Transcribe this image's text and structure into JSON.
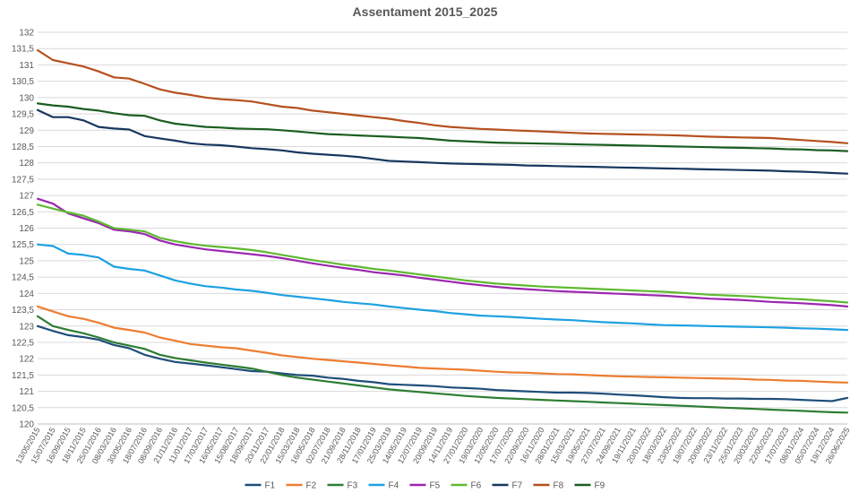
{
  "chart_data": {
    "type": "line",
    "title": "Assentament 2015_2025",
    "xlabel": "",
    "ylabel": "",
    "ylim": [
      120,
      132
    ],
    "ytick_step": 0.5,
    "ytick_labels": [
      "120",
      "120,5",
      "121",
      "121,5",
      "122",
      "122,5",
      "123",
      "123,5",
      "124",
      "124,5",
      "125",
      "125,5",
      "126",
      "126,5",
      "127",
      "127,5",
      "128",
      "128,5",
      "129",
      "129,5",
      "130",
      "130,5",
      "131",
      "131,5",
      "132"
    ],
    "grid": true,
    "legend_position": "bottom",
    "categories": [
      "13/05/2015",
      "15/07/2015",
      "16/09/2015",
      "18/11/2015",
      "25/01/2016",
      "08/03/2016",
      "30/05/2016",
      "18/07/2016",
      "08/09/2016",
      "21/11/2016",
      "11/01/2017",
      "17/03/2017",
      "16/05/2017",
      "15/08/2017",
      "18/09/2017",
      "20/11/2017",
      "22/01/2018",
      "15/03/2018",
      "16/05/2018",
      "02/07/2018",
      "21/09/2018",
      "28/11/2018",
      "17/01/2019",
      "25/03/2019",
      "14/05/2019",
      "12/07/2019",
      "20/09/2019",
      "14/11/2019",
      "27/01/2020",
      "19/03/2020",
      "12/05/2020",
      "17/07/2020",
      "22/09/2020",
      "16/11/2020",
      "28/01/2021",
      "15/03/2021",
      "19/05/2021",
      "27/07/2021",
      "24/09/2021",
      "19/11/2021",
      "20/01/2022",
      "18/03/2022",
      "23/05/2022",
      "19/07/2022",
      "20/09/2022",
      "23/11/2022",
      "25/01/2023",
      "20/03/2023",
      "22/05/2023",
      "17/07/2023",
      "08/01/2024",
      "05/07/2024",
      "19/12/2024",
      "26/06/2025"
    ],
    "series": [
      {
        "name": "F1",
        "color": "#1f4e79",
        "values": [
          123.0,
          122.85,
          122.72,
          122.66,
          122.58,
          122.42,
          122.32,
          122.12,
          122.0,
          121.9,
          121.85,
          121.8,
          121.74,
          121.68,
          121.62,
          121.6,
          121.55,
          121.5,
          121.48,
          121.42,
          121.38,
          121.32,
          121.28,
          121.22,
          121.2,
          121.18,
          121.16,
          121.12,
          121.1,
          121.08,
          121.04,
          121.02,
          121.0,
          120.98,
          120.96,
          120.96,
          120.95,
          120.93,
          120.9,
          120.88,
          120.85,
          120.82,
          120.8,
          120.79,
          120.79,
          120.78,
          120.78,
          120.77,
          120.77,
          120.76,
          120.74,
          120.72,
          120.7,
          120.8
        ]
      },
      {
        "name": "F2",
        "color": "#ed7d31",
        "values": [
          123.6,
          123.45,
          123.3,
          123.22,
          123.1,
          122.95,
          122.88,
          122.8,
          122.65,
          122.55,
          122.45,
          122.4,
          122.35,
          122.32,
          122.25,
          122.18,
          122.1,
          122.05,
          122.0,
          121.96,
          121.92,
          121.88,
          121.84,
          121.8,
          121.76,
          121.72,
          121.7,
          121.68,
          121.66,
          121.63,
          121.6,
          121.58,
          121.57,
          121.55,
          121.53,
          121.52,
          121.5,
          121.48,
          121.46,
          121.45,
          121.44,
          121.43,
          121.42,
          121.41,
          121.4,
          121.39,
          121.38,
          121.36,
          121.35,
          121.33,
          121.32,
          121.3,
          121.28,
          121.27
        ]
      },
      {
        "name": "F3",
        "color": "#2e7d32",
        "values": [
          123.3,
          123.0,
          122.88,
          122.78,
          122.65,
          122.5,
          122.4,
          122.3,
          122.12,
          122.02,
          121.95,
          121.88,
          121.82,
          121.76,
          121.7,
          121.6,
          121.5,
          121.42,
          121.36,
          121.3,
          121.24,
          121.18,
          121.12,
          121.06,
          121.02,
          120.98,
          120.94,
          120.9,
          120.86,
          120.83,
          120.8,
          120.78,
          120.76,
          120.74,
          120.72,
          120.7,
          120.68,
          120.66,
          120.64,
          120.62,
          120.6,
          120.58,
          120.56,
          120.54,
          120.52,
          120.5,
          120.48,
          120.46,
          120.44,
          120.42,
          120.4,
          120.38,
          120.36,
          120.35
        ]
      },
      {
        "name": "F4",
        "color": "#1da1e2",
        "values": [
          125.5,
          125.45,
          125.22,
          125.18,
          125.1,
          124.82,
          124.75,
          124.7,
          124.55,
          124.4,
          124.3,
          124.22,
          124.18,
          124.12,
          124.08,
          124.02,
          123.95,
          123.9,
          123.85,
          123.8,
          123.74,
          123.7,
          123.66,
          123.6,
          123.55,
          123.5,
          123.46,
          123.4,
          123.36,
          123.32,
          123.3,
          123.28,
          123.25,
          123.22,
          123.2,
          123.18,
          123.15,
          123.12,
          123.1,
          123.08,
          123.05,
          123.03,
          123.02,
          123.01,
          123.0,
          122.99,
          122.98,
          122.97,
          122.96,
          122.95,
          122.93,
          122.92,
          122.9,
          122.88
        ]
      },
      {
        "name": "F5",
        "color": "#9b27af",
        "values": [
          126.9,
          126.75,
          126.45,
          126.3,
          126.15,
          125.95,
          125.9,
          125.82,
          125.62,
          125.5,
          125.42,
          125.35,
          125.3,
          125.25,
          125.2,
          125.15,
          125.08,
          125.0,
          124.92,
          124.85,
          124.78,
          124.72,
          124.65,
          124.6,
          124.55,
          124.48,
          124.42,
          124.36,
          124.3,
          124.25,
          124.2,
          124.16,
          124.13,
          124.1,
          124.07,
          124.05,
          124.03,
          124.01,
          123.99,
          123.97,
          123.95,
          123.93,
          123.9,
          123.87,
          123.84,
          123.82,
          123.8,
          123.77,
          123.74,
          123.72,
          123.7,
          123.67,
          123.64,
          123.6
        ]
      },
      {
        "name": "F6",
        "color": "#5fb832",
        "values": [
          126.72,
          126.6,
          126.48,
          126.38,
          126.2,
          126.0,
          125.95,
          125.9,
          125.7,
          125.6,
          125.52,
          125.46,
          125.42,
          125.38,
          125.33,
          125.26,
          125.18,
          125.1,
          125.02,
          124.95,
          124.88,
          124.82,
          124.75,
          124.7,
          124.64,
          124.58,
          124.52,
          124.46,
          124.4,
          124.35,
          124.3,
          124.27,
          124.24,
          124.21,
          124.19,
          124.17,
          124.15,
          124.13,
          124.11,
          124.09,
          124.07,
          124.05,
          124.02,
          123.99,
          123.96,
          123.94,
          123.92,
          123.9,
          123.87,
          123.84,
          123.82,
          123.79,
          123.76,
          123.72
        ]
      },
      {
        "name": "F7",
        "color": "#17375e",
        "values": [
          129.62,
          129.4,
          129.4,
          129.3,
          129.1,
          129.05,
          129.02,
          128.82,
          128.75,
          128.68,
          128.6,
          128.56,
          128.54,
          128.5,
          128.45,
          128.42,
          128.38,
          128.32,
          128.28,
          128.25,
          128.22,
          128.18,
          128.12,
          128.06,
          128.04,
          128.02,
          128.0,
          127.98,
          127.97,
          127.96,
          127.95,
          127.94,
          127.92,
          127.91,
          127.9,
          127.89,
          127.88,
          127.87,
          127.86,
          127.85,
          127.84,
          127.83,
          127.82,
          127.81,
          127.8,
          127.79,
          127.78,
          127.77,
          127.76,
          127.74,
          127.73,
          127.71,
          127.69,
          127.67
        ]
      },
      {
        "name": "F8",
        "color": "#b5501e",
        "values": [
          131.45,
          131.15,
          131.05,
          130.95,
          130.8,
          130.62,
          130.58,
          130.42,
          130.25,
          130.15,
          130.08,
          130.0,
          129.95,
          129.92,
          129.88,
          129.8,
          129.72,
          129.68,
          129.6,
          129.55,
          129.5,
          129.45,
          129.4,
          129.35,
          129.28,
          129.22,
          129.15,
          129.1,
          129.07,
          129.04,
          129.02,
          129.0,
          128.98,
          128.96,
          128.94,
          128.92,
          128.9,
          128.89,
          128.88,
          128.87,
          128.86,
          128.85,
          128.84,
          128.82,
          128.8,
          128.79,
          128.78,
          128.77,
          128.76,
          128.73,
          128.7,
          128.67,
          128.64,
          128.6
        ]
      },
      {
        "name": "F9",
        "color": "#1b5e20",
        "values": [
          129.82,
          129.76,
          129.72,
          129.65,
          129.6,
          129.52,
          129.46,
          129.44,
          129.3,
          129.2,
          129.15,
          129.1,
          129.08,
          129.05,
          129.04,
          129.03,
          129.0,
          128.96,
          128.92,
          128.88,
          128.86,
          128.84,
          128.82,
          128.8,
          128.78,
          128.76,
          128.72,
          128.68,
          128.66,
          128.64,
          128.62,
          128.61,
          128.6,
          128.59,
          128.58,
          128.57,
          128.56,
          128.55,
          128.54,
          128.53,
          128.52,
          128.51,
          128.5,
          128.49,
          128.48,
          128.47,
          128.46,
          128.45,
          128.44,
          128.42,
          128.41,
          128.39,
          128.38,
          128.36
        ]
      }
    ]
  }
}
